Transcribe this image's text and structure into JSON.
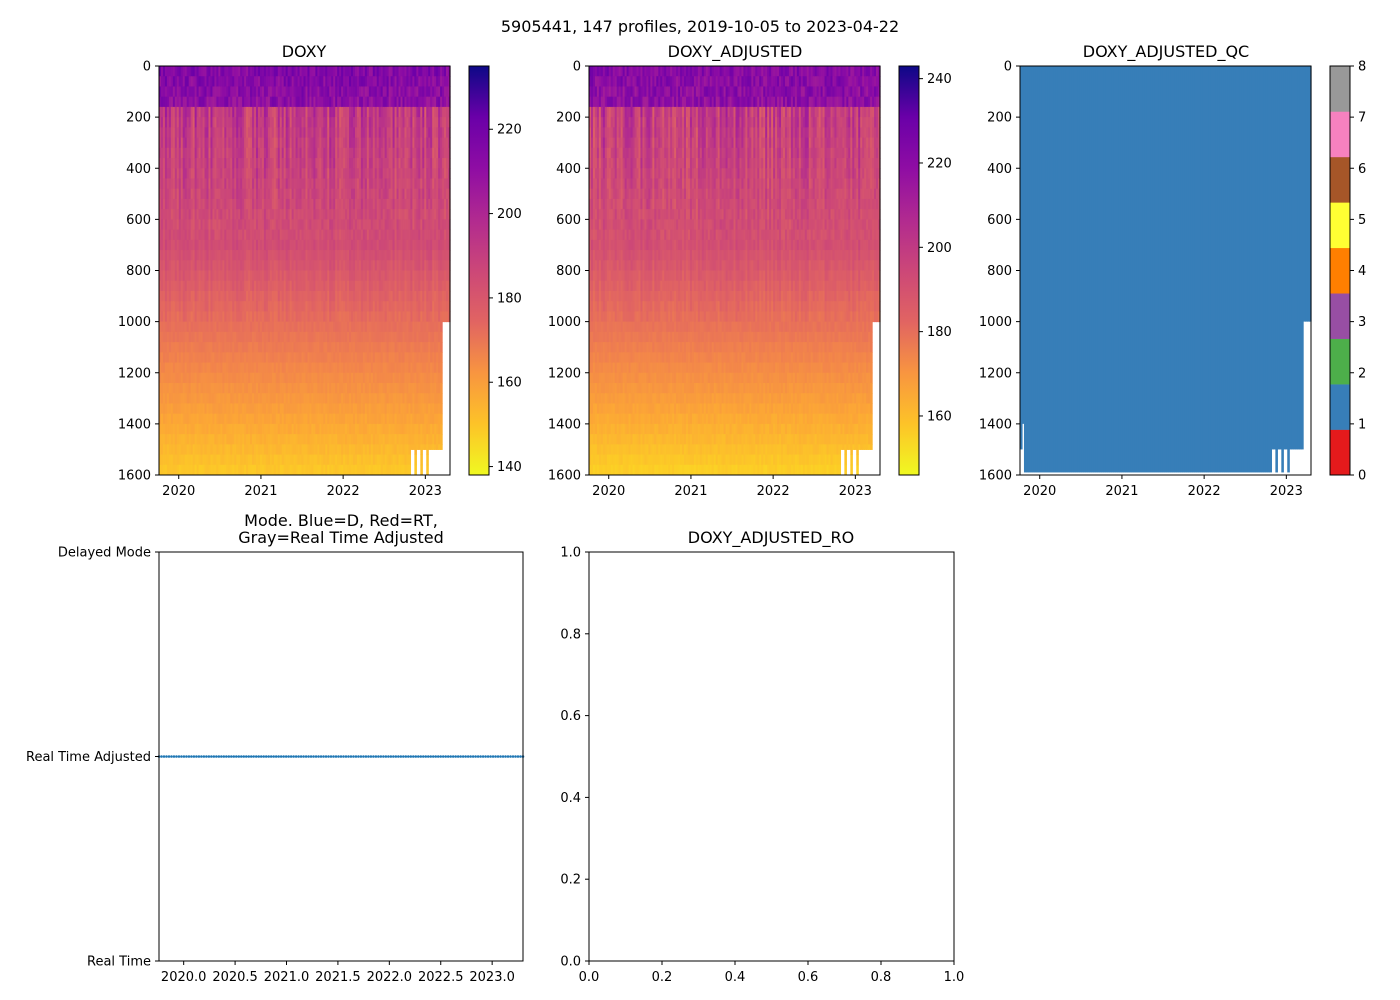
{
  "chart_data": [
    {
      "type": "heatmap",
      "suptitle": "5905441, 147 profiles, 2019-10-05 to 2023-04-22",
      "panels": [
        {
          "id": "doxy",
          "type": "heatmap",
          "title": "DOXY",
          "x_range": [
            2019.76,
            2023.3
          ],
          "y_range": [
            1600,
            0
          ],
          "x_ticks": [
            {
              "value": 2020,
              "label": "2020"
            },
            {
              "value": 2021,
              "label": "2021"
            },
            {
              "value": 2022,
              "label": "2022"
            },
            {
              "value": 2023,
              "label": "2023"
            }
          ],
          "y_ticks": [
            {
              "value": 0,
              "label": "0"
            },
            {
              "value": 200,
              "label": "200"
            },
            {
              "value": 400,
              "label": "400"
            },
            {
              "value": 600,
              "label": "600"
            },
            {
              "value": 800,
              "label": "800"
            },
            {
              "value": 1000,
              "label": "1000"
            },
            {
              "value": 1200,
              "label": "1200"
            },
            {
              "value": 1400,
              "label": "1400"
            },
            {
              "value": 1600,
              "label": "1600"
            }
          ],
          "colormap": "plasma_r",
          "colorbar": {
            "range": [
              138,
              235
            ],
            "ticks": [
              {
                "value": 140,
                "label": "140"
              },
              {
                "value": 160,
                "label": "160"
              },
              {
                "value": 180,
                "label": "180"
              },
              {
                "value": 200,
                "label": "200"
              },
              {
                "value": 220,
                "label": "220"
              }
            ]
          },
          "field": {
            "surface": 215,
            "mid": 190,
            "deep": 150
          },
          "data_end_year": 2023.2,
          "shallow_profile_end_year": 2023.3,
          "shallow_profile_max_depth": 1000
        },
        {
          "id": "doxy-adjusted",
          "type": "heatmap",
          "title": "DOXY_ADJUSTED",
          "x_range": [
            2019.76,
            2023.3
          ],
          "y_range": [
            1600,
            0
          ],
          "x_ticks": [
            {
              "value": 2020,
              "label": "2020"
            },
            {
              "value": 2021,
              "label": "2021"
            },
            {
              "value": 2022,
              "label": "2022"
            },
            {
              "value": 2023,
              "label": "2023"
            }
          ],
          "y_ticks": [
            {
              "value": 0,
              "label": "0"
            },
            {
              "value": 200,
              "label": "200"
            },
            {
              "value": 400,
              "label": "400"
            },
            {
              "value": 600,
              "label": "600"
            },
            {
              "value": 800,
              "label": "800"
            },
            {
              "value": 1000,
              "label": "1000"
            },
            {
              "value": 1200,
              "label": "1200"
            },
            {
              "value": 1400,
              "label": "1400"
            },
            {
              "value": 1600,
              "label": "1600"
            }
          ],
          "colormap": "plasma_r",
          "colorbar": {
            "range": [
              146,
              243
            ],
            "ticks": [
              {
                "value": 160,
                "label": "160"
              },
              {
                "value": 180,
                "label": "180"
              },
              {
                "value": 200,
                "label": "200"
              },
              {
                "value": 220,
                "label": "220"
              },
              {
                "value": 240,
                "label": "240"
              }
            ]
          },
          "field": {
            "surface": 222,
            "mid": 197,
            "deep": 156
          },
          "data_end_year": 2023.2,
          "shallow_profile_end_year": 2023.3,
          "shallow_profile_max_depth": 1000
        },
        {
          "id": "doxy-adjusted-qc",
          "type": "heatmap",
          "title": "DOXY_ADJUSTED_QC",
          "x_range": [
            2019.76,
            2023.3
          ],
          "y_range": [
            1600,
            0
          ],
          "x_ticks": [
            {
              "value": 2020,
              "label": "2020"
            },
            {
              "value": 2021,
              "label": "2021"
            },
            {
              "value": 2022,
              "label": "2022"
            },
            {
              "value": 2023,
              "label": "2023"
            }
          ],
          "y_ticks": [
            {
              "value": 0,
              "label": "0"
            },
            {
              "value": 200,
              "label": "200"
            },
            {
              "value": 400,
              "label": "400"
            },
            {
              "value": 600,
              "label": "600"
            },
            {
              "value": 800,
              "label": "800"
            },
            {
              "value": 1000,
              "label": "1000"
            },
            {
              "value": 1200,
              "label": "1200"
            },
            {
              "value": 1400,
              "label": "1400"
            },
            {
              "value": 1600,
              "label": "1600"
            }
          ],
          "qc_value": 1,
          "fill_color": "#377eb8",
          "colorbar": {
            "range": [
              0,
              8
            ],
            "bands": [
              "#e41a1c",
              "#377eb8",
              "#4daf4a",
              "#984ea3",
              "#ff7f00",
              "#ffff33",
              "#a65628",
              "#f781bf",
              "#999999"
            ],
            "ticks": [
              {
                "value": 0,
                "label": "0"
              },
              {
                "value": 1,
                "label": "1"
              },
              {
                "value": 2,
                "label": "2"
              },
              {
                "value": 3,
                "label": "3"
              },
              {
                "value": 4,
                "label": "4"
              },
              {
                "value": 5,
                "label": "5"
              },
              {
                "value": 6,
                "label": "6"
              },
              {
                "value": 7,
                "label": "7"
              },
              {
                "value": 8,
                "label": "8"
              }
            ]
          },
          "data_end_year": 2023.2,
          "shallow_profile_end_year": 2023.3,
          "shallow_profile_max_depth": 1000
        },
        {
          "id": "mode",
          "type": "scatter",
          "title_lines": [
            "Mode. Blue=D, Red=RT,",
            "Gray=Real Time Adjusted"
          ],
          "x_range": [
            2019.76,
            2023.3
          ],
          "y_range": [
            0,
            2
          ],
          "x_ticks": [
            {
              "value": 2020.0,
              "label": "2020.0"
            },
            {
              "value": 2020.5,
              "label": "2020.5"
            },
            {
              "value": 2021.0,
              "label": "2021.0"
            },
            {
              "value": 2021.5,
              "label": "2021.5"
            },
            {
              "value": 2022.0,
              "label": "2022.0"
            },
            {
              "value": 2022.5,
              "label": "2022.5"
            },
            {
              "value": 2023.0,
              "label": "2023.0"
            }
          ],
          "y_ticks": [
            {
              "value": 0,
              "label": "Real Time"
            },
            {
              "value": 1,
              "label": "Real Time Adjusted"
            },
            {
              "value": 2,
              "label": "Delayed Mode"
            }
          ],
          "series": [
            {
              "name": "profiles",
              "color": "#1f77b4",
              "y": 1,
              "x_start": 2019.76,
              "x_end": 2023.3,
              "count": 147
            }
          ]
        },
        {
          "id": "doxy-adjusted-ro",
          "type": "scatter",
          "title": "DOXY_ADJUSTED_RO",
          "x_range": [
            0,
            1
          ],
          "y_range": [
            0,
            1
          ],
          "x_ticks": [
            {
              "value": 0.0,
              "label": "0.0"
            },
            {
              "value": 0.2,
              "label": "0.2"
            },
            {
              "value": 0.4,
              "label": "0.4"
            },
            {
              "value": 0.6,
              "label": "0.6"
            },
            {
              "value": 0.8,
              "label": "0.8"
            },
            {
              "value": 1.0,
              "label": "1.0"
            }
          ],
          "y_ticks": [
            {
              "value": 0.0,
              "label": "0.0"
            },
            {
              "value": 0.2,
              "label": "0.2"
            },
            {
              "value": 0.4,
              "label": "0.4"
            },
            {
              "value": 0.6,
              "label": "0.6"
            },
            {
              "value": 0.8,
              "label": "0.8"
            },
            {
              "value": 1.0,
              "label": "1.0"
            }
          ],
          "series": []
        }
      ]
    }
  ]
}
